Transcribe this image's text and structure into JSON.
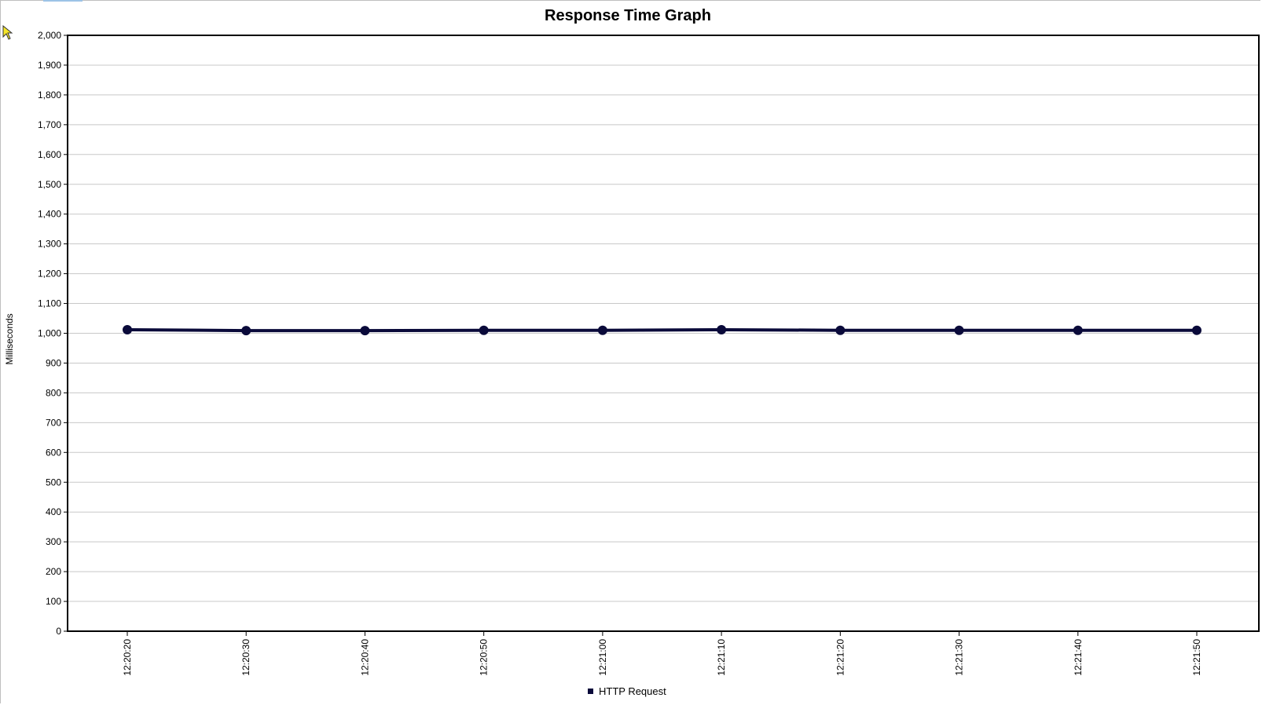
{
  "chart_data": {
    "type": "line",
    "title": "Response Time Graph",
    "xlabel": "",
    "ylabel": "Milliseconds",
    "ylim": [
      0,
      2000
    ],
    "yticks": [
      0,
      100,
      200,
      300,
      400,
      500,
      600,
      700,
      800,
      900,
      1000,
      1100,
      1200,
      1300,
      1400,
      1500,
      1600,
      1700,
      1800,
      1900,
      2000
    ],
    "ytick_labels": [
      "0",
      "100",
      "200",
      "300",
      "400",
      "500",
      "600",
      "700",
      "800",
      "900",
      "1,000",
      "1,100",
      "1,200",
      "1,300",
      "1,400",
      "1,500",
      "1,600",
      "1,700",
      "1,800",
      "1,900",
      "2,000"
    ],
    "categories": [
      "12:20:20",
      "12:20:30",
      "12:20:40",
      "12:20:50",
      "12:21:00",
      "12:21:10",
      "12:21:20",
      "12:21:30",
      "12:21:40",
      "12:21:50"
    ],
    "series": [
      {
        "name": "HTTP Request",
        "color": "#0a0a3a",
        "values": [
          1012,
          1009,
          1009,
          1010,
          1010,
          1012,
          1010,
          1010,
          1010,
          1010
        ]
      }
    ],
    "grid": true,
    "legend": "bottom-center"
  },
  "ui": {
    "cursor_icon": "pointer-cursor-icon"
  }
}
